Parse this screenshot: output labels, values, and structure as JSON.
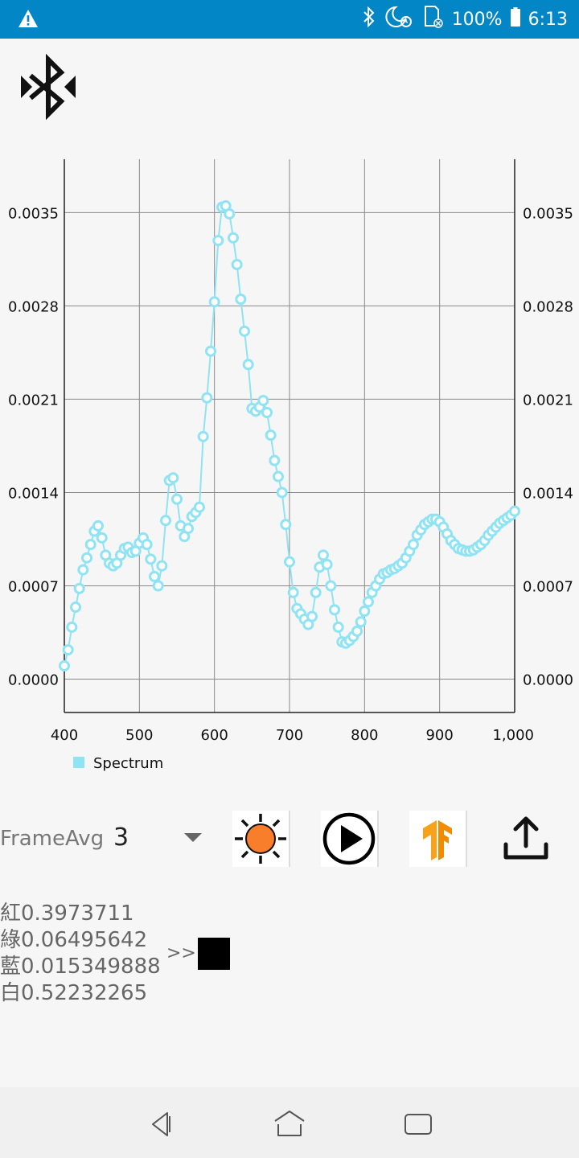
{
  "status_bar": {
    "battery_text": "100%",
    "time": "6:13",
    "icons": [
      "warning-icon",
      "bluetooth-icon",
      "do-not-disturb-alarm-icon",
      "sd-card-icon",
      "battery-icon"
    ]
  },
  "header": {
    "icon": "bluetooth-scan-icon"
  },
  "chart_data": {
    "type": "line",
    "x": [
      400,
      405,
      410,
      415,
      420,
      425,
      430,
      435,
      440,
      445,
      450,
      455,
      460,
      465,
      470,
      475,
      480,
      485,
      490,
      495,
      500,
      505,
      510,
      515,
      520,
      525,
      530,
      535,
      540,
      545,
      550,
      555,
      560,
      565,
      570,
      575,
      580,
      585,
      590,
      595,
      600,
      605,
      610,
      615,
      620,
      625,
      630,
      635,
      640,
      645,
      650,
      655,
      660,
      665,
      670,
      675,
      680,
      685,
      690,
      695,
      700,
      705,
      710,
      715,
      720,
      725,
      730,
      735,
      740,
      745,
      750,
      755,
      760,
      765,
      770,
      775,
      780,
      785,
      790,
      795,
      800,
      805,
      810,
      815,
      820,
      825,
      830,
      835,
      840,
      845,
      850,
      855,
      860,
      865,
      870,
      875,
      880,
      885,
      890,
      895,
      900,
      905,
      910,
      915,
      920,
      925,
      930,
      935,
      940,
      945,
      950,
      955,
      960,
      965,
      970,
      975,
      980,
      985,
      990,
      995,
      1000
    ],
    "series": [
      {
        "name": "Spectrum",
        "values": [
          0.0001,
          0.00022,
          0.00039,
          0.00054,
          0.00068,
          0.00082,
          0.00091,
          0.00101,
          0.00111,
          0.00115,
          0.00106,
          0.00093,
          0.00087,
          0.00085,
          0.00087,
          0.00093,
          0.00098,
          0.00099,
          0.00095,
          0.00096,
          0.00102,
          0.00106,
          0.00101,
          0.0009,
          0.00077,
          0.0007,
          0.00085,
          0.00119,
          0.00149,
          0.00151,
          0.00135,
          0.00115,
          0.00107,
          0.00113,
          0.00122,
          0.00125,
          0.00129,
          0.00182,
          0.00211,
          0.00246,
          0.00283,
          0.00329,
          0.00354,
          0.00355,
          0.00349,
          0.00331,
          0.00311,
          0.00285,
          0.00261,
          0.00236,
          0.00203,
          0.00201,
          0.00204,
          0.00209,
          0.002,
          0.00183,
          0.00164,
          0.00152,
          0.0014,
          0.00116,
          0.00088,
          0.00065,
          0.00053,
          0.00049,
          0.00045,
          0.00041,
          0.00047,
          0.00065,
          0.00084,
          0.00093,
          0.00086,
          0.0007,
          0.00052,
          0.00039,
          0.00028,
          0.00027,
          0.00029,
          0.00032,
          0.00036,
          0.00043,
          0.00051,
          0.00058,
          0.00065,
          0.0007,
          0.00075,
          0.00079,
          0.0008,
          0.00082,
          0.00083,
          0.00085,
          0.00087,
          0.00091,
          0.00096,
          0.00101,
          0.00108,
          0.00112,
          0.00116,
          0.00118,
          0.0012,
          0.0012,
          0.00118,
          0.00114,
          0.00109,
          0.00104,
          0.00101,
          0.00098,
          0.00097,
          0.00096,
          0.00096,
          0.00097,
          0.00099,
          0.00101,
          0.00104,
          0.00108,
          0.00111,
          0.00114,
          0.00117,
          0.00119,
          0.00121,
          0.00123,
          0.00126
        ]
      }
    ],
    "xlim": [
      400,
      1000
    ],
    "ylim": [
      -0.00025,
      0.0039
    ],
    "x_ticks": [
      "400",
      "500",
      "600",
      "700",
      "800",
      "900",
      "1,000"
    ],
    "y_ticks": [
      "0.0000",
      "0.0007",
      "0.0014",
      "0.0021",
      "0.0028",
      "0.0035"
    ],
    "legend": [
      {
        "label": "Spectrum",
        "color": "#8fe3f2"
      }
    ],
    "legend_position": "bottom-left",
    "grid": true,
    "line_color": "#8fe3f2"
  },
  "controls": {
    "frame_avg_label": "FrameAvg",
    "frame_avg_value": "3",
    "buttons": [
      "light-toggle-icon",
      "play-icon",
      "tensorflow-icon",
      "share-icon"
    ],
    "light_color": "#f97e2b"
  },
  "readout": {
    "red": "紅0.3973711",
    "green": "綠0.06495642",
    "blue": "藍0.015349888",
    "white": "白0.52232265",
    "arrow": ">>",
    "swatch_color": "#000000"
  }
}
